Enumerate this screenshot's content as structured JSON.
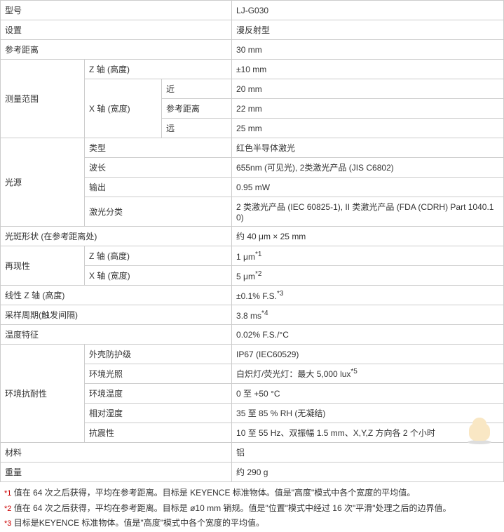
{
  "rows": {
    "model_label": "型号",
    "model_value": "LJ-G030",
    "setting_label": "设置",
    "setting_value": "漫反射型",
    "refdist_label": "参考距离",
    "refdist_value": "30 mm",
    "measrange_label": "测量范围",
    "z_axis_label": "Z 轴 (高度)",
    "z_axis_value": "±10 mm",
    "x_axis_label": "X 轴 (宽度)",
    "near_label": "近",
    "near_value": "20 mm",
    "ref_label2": "参考距离",
    "ref_value2": "22 mm",
    "far_label": "远",
    "far_value": "25 mm",
    "light_label": "光源",
    "type_label": "类型",
    "type_value": "红色半导体激光",
    "wavelength_label": "波长",
    "wavelength_value": "655nm (可见光), 2类激光产品 (JIS C6802)",
    "output_label": "输出",
    "output_value": "0.95 mW",
    "laserclass_label": "激光分类",
    "laserclass_value": "2 类激光产品 (IEC 60825-1), II 类激光产品 (FDA (CDRH) Part 1040.10)",
    "spot_label": "光斑形状 (在参考距离处)",
    "spot_value": "约 40 μm × 25 mm",
    "repeat_label": "再现性",
    "repeat_z_label": "Z 轴 (高度)",
    "repeat_z_value": "1 μm",
    "repeat_x_label": "X 轴 (宽度)",
    "repeat_x_value": "5 μm",
    "linearity_label": "线性 Z 轴 (高度)",
    "linearity_value": "±0.1% F.S.",
    "sampling_label": "采样周期(触发间隔)",
    "sampling_value": "3.8 ms",
    "temp_label": "温度特征",
    "temp_value": "0.02% F.S./°C",
    "env_label": "环境抗耐性",
    "ip_label": "外壳防护级",
    "ip_value": "IP67 (IEC60529)",
    "ambientlight_label": "环境光照",
    "ambientlight_value": "白炽灯/荧光灯：最大 5,000 lux",
    "ambienttemp_label": "环境温度",
    "ambienttemp_value": "0 至 +50 °C",
    "humidity_label": "相对湿度",
    "humidity_value": "35 至 85 % RH (无凝结)",
    "vibration_label": "抗震性",
    "vibration_value": "10 至 55 Hz、双振幅 1.5 mm、X,Y,Z 方向各 2 个小时",
    "material_label": "材料",
    "material_value": "铝",
    "weight_label": "重量",
    "weight_value": "约 290 g"
  },
  "sup": {
    "s1": "*1",
    "s2": "*2",
    "s3": "*3",
    "s4": "*4",
    "s5": "*5"
  },
  "fn": {
    "m1": "*1",
    "t1": "值在 64 次之后获得，平均在参考距离。目标是 KEYENCE 标准物体。值是\"高度\"模式中各个宽度的平均值。",
    "m2": "*2",
    "t2": "值在 64 次之后获得，平均在参考距离。目标是 ø10 mm 销规。值是\"位置\"模式中经过 16 次\"平滑\"处理之后的边界值。",
    "m3": "*3",
    "t3": "目标是KEYENCE 标准物体。值是\"高度\"模式中各个宽度的平均值。"
  }
}
